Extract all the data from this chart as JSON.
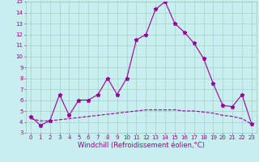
{
  "xlabel": "Windchill (Refroidissement éolien,°C)",
  "x_line1": [
    0,
    1,
    2,
    3,
    4,
    5,
    6,
    7,
    8,
    9,
    10,
    11,
    12,
    13,
    14,
    15,
    16,
    17,
    18,
    19,
    20,
    21,
    22,
    23
  ],
  "y_line1": [
    4.5,
    3.7,
    4.1,
    6.5,
    4.6,
    6.0,
    6.0,
    6.5,
    8.0,
    6.5,
    8.0,
    11.5,
    12.0,
    14.3,
    15.0,
    13.0,
    12.2,
    11.2,
    9.8,
    7.5,
    5.5,
    5.4,
    6.5,
    3.8
  ],
  "x_line2": [
    0,
    1,
    2,
    3,
    4,
    5,
    6,
    7,
    8,
    9,
    10,
    11,
    12,
    13,
    14,
    15,
    16,
    17,
    18,
    19,
    20,
    21,
    22,
    23
  ],
  "y_line2": [
    4.3,
    4.1,
    4.1,
    4.2,
    4.3,
    4.4,
    4.5,
    4.6,
    4.7,
    4.8,
    4.9,
    5.0,
    5.1,
    5.1,
    5.1,
    5.1,
    5.0,
    5.0,
    4.9,
    4.8,
    4.6,
    4.5,
    4.3,
    3.8
  ],
  "line_color": "#990099",
  "bg_color": "#c8eef0",
  "grid_color": "#99ccbb",
  "ylim": [
    3,
    15
  ],
  "xlim_min": -0.5,
  "xlim_max": 23.5,
  "yticks": [
    3,
    4,
    5,
    6,
    7,
    8,
    9,
    10,
    11,
    12,
    13,
    14,
    15
  ],
  "xticks": [
    0,
    1,
    2,
    3,
    4,
    5,
    6,
    7,
    8,
    9,
    10,
    11,
    12,
    13,
    14,
    15,
    16,
    17,
    18,
    19,
    20,
    21,
    22,
    23
  ],
  "tick_fontsize": 5.0,
  "xlabel_fontsize": 6.0
}
